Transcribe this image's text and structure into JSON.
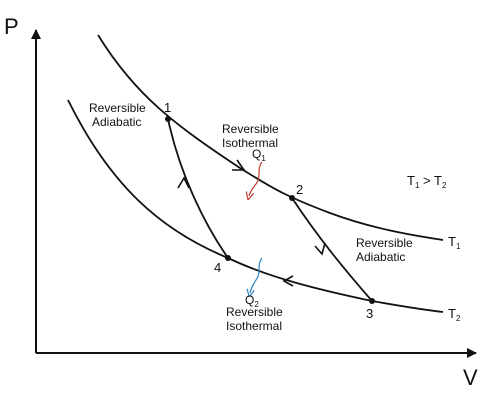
{
  "axes": {
    "x_label": "V",
    "y_label": "P"
  },
  "points": [
    "1",
    "2",
    "3",
    "4"
  ],
  "processes": {
    "top_isothermal": [
      "Reversible",
      "Isothermal"
    ],
    "bottom_isothermal": [
      "Reversible",
      "Isothermal"
    ],
    "left_adiabatic": [
      "Reversible",
      "Adiabatic"
    ],
    "right_adiabatic": [
      "Reversible",
      "Adiabatic"
    ]
  },
  "heat": {
    "q1": "Q",
    "q1_sub": "1",
    "q2": "Q",
    "q2_sub": "2"
  },
  "isotherm_labels": {
    "t1": "T",
    "t1_sub": "1",
    "t2": "T",
    "t2_sub": "2"
  },
  "relation": {
    "a": "T",
    "a_sub": "1",
    "op": " > ",
    "b": "T",
    "b_sub": "2"
  },
  "colors": {
    "line": "#111111",
    "q1_arrow": "#c0392b",
    "q2_arrow": "#2e86c1"
  }
}
